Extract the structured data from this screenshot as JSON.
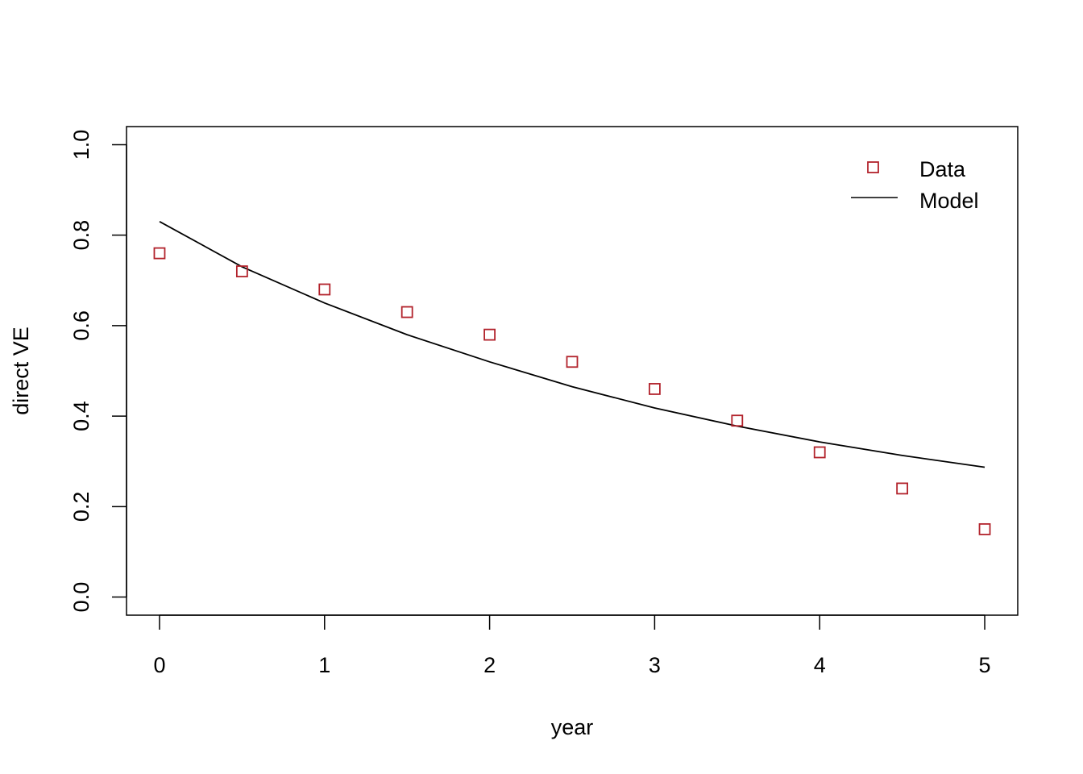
{
  "chart_data": {
    "type": "scatter",
    "title": "",
    "xlabel": "year",
    "ylabel": "direct VE",
    "xlim": [
      -0.2,
      5.2
    ],
    "ylim": [
      -0.04,
      1.04
    ],
    "x_ticks": [
      0,
      1,
      2,
      3,
      4,
      5
    ],
    "x_tick_labels": [
      "0",
      "1",
      "2",
      "3",
      "4",
      "5"
    ],
    "y_ticks": [
      0.0,
      0.2,
      0.4,
      0.6,
      0.8,
      1.0
    ],
    "y_tick_labels": [
      "0.0",
      "0.2",
      "0.4",
      "0.6",
      "0.8",
      "1.0"
    ],
    "grid": false,
    "legend_position": "top-right",
    "series": [
      {
        "name": "Data",
        "kind": "points",
        "marker": "open-square",
        "color": "#B2222B",
        "x": [
          0,
          0.5,
          1,
          1.5,
          2,
          2.5,
          3,
          3.5,
          4,
          4.5,
          5
        ],
        "y": [
          0.76,
          0.72,
          0.68,
          0.63,
          0.58,
          0.52,
          0.46,
          0.39,
          0.32,
          0.24,
          0.15
        ]
      },
      {
        "name": "Model",
        "kind": "line",
        "color": "#000000",
        "x": [
          0,
          0.5,
          1,
          1.5,
          2,
          2.5,
          3,
          3.5,
          4,
          4.5,
          5
        ],
        "y": [
          0.83,
          0.73,
          0.65,
          0.58,
          0.52,
          0.465,
          0.418,
          0.378,
          0.343,
          0.313,
          0.287
        ]
      }
    ]
  }
}
